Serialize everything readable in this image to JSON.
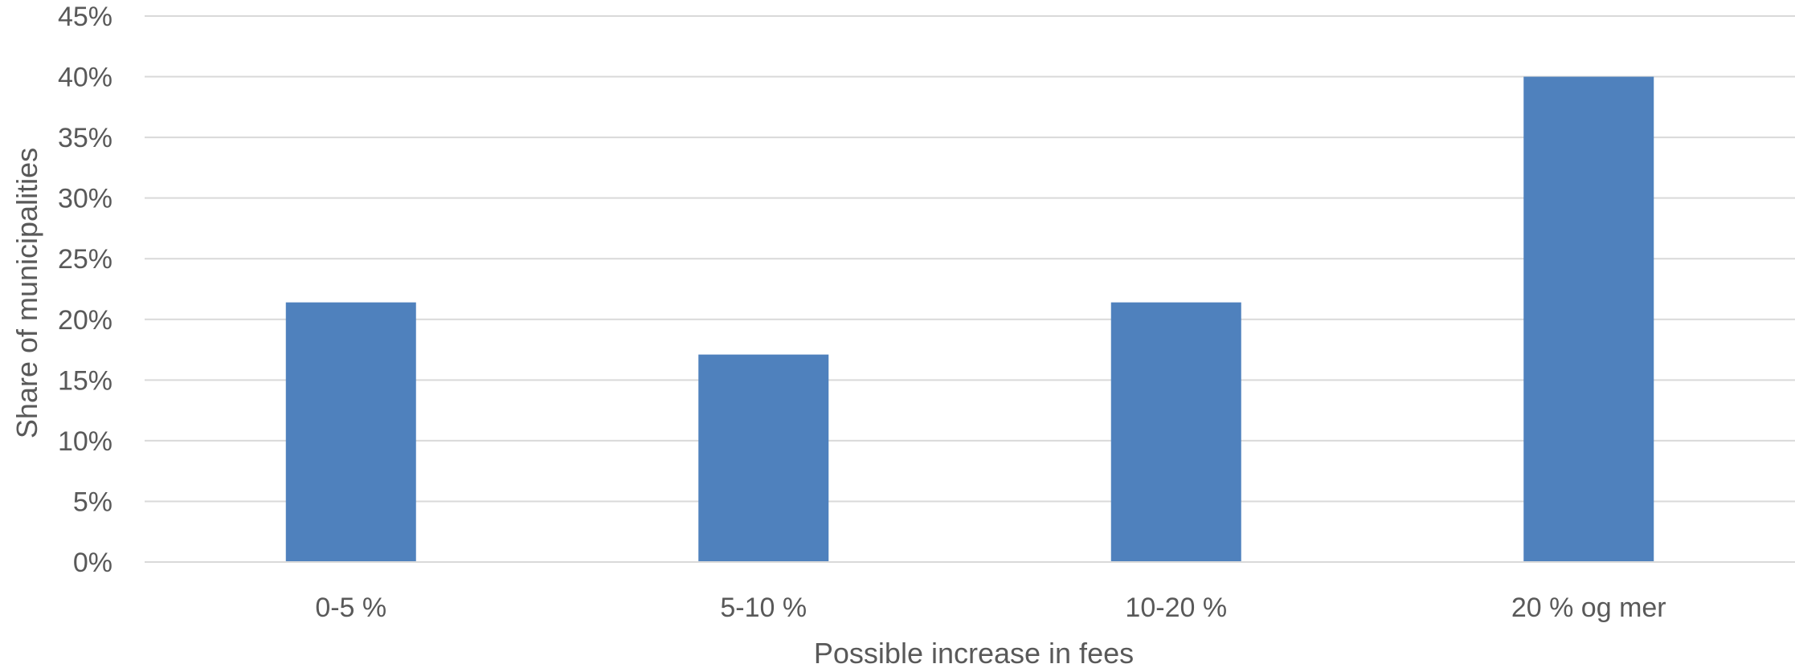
{
  "chart_data": {
    "type": "bar",
    "categories": [
      "0-5 %",
      "5-10 %",
      "10-20 %",
      "20 % og mer"
    ],
    "values": [
      0.214,
      0.171,
      0.214,
      0.4
    ],
    "title": "",
    "xlabel": "Possible increase in fees",
    "ylabel": "Share of municipalities",
    "ylim": [
      0,
      0.45
    ],
    "ytick_values": [
      0,
      0.05,
      0.1,
      0.15,
      0.2,
      0.25,
      0.3,
      0.35,
      0.4,
      0.45
    ],
    "ytick_labels": [
      "0%",
      "5%",
      "10%",
      "15%",
      "20%",
      "25%",
      "30%",
      "35%",
      "40%",
      "45%"
    ],
    "grid": true,
    "legend": "none",
    "colors": {
      "bar": "#4f81bd",
      "grid": "#d9d9d9",
      "text": "#595959"
    }
  }
}
